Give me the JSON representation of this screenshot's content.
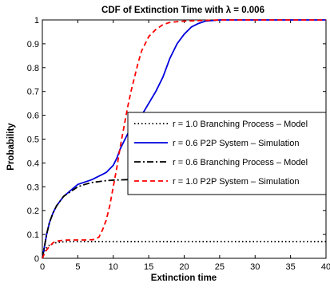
{
  "chart_data": {
    "type": "line",
    "title": "CDF of Extinction Time with λ = 0.006",
    "xlabel": "Extinction time",
    "ylabel": "Probability",
    "xlim": [
      0,
      40
    ],
    "ylim": [
      0,
      1
    ],
    "xticks": [
      0,
      5,
      10,
      15,
      20,
      25,
      30,
      35,
      40
    ],
    "yticks": [
      0,
      0.1,
      0.2,
      0.3,
      0.4,
      0.5,
      0.6,
      0.7,
      0.8,
      0.9,
      1
    ],
    "xtick_labels": [
      "0",
      "5",
      "10",
      "15",
      "20",
      "25",
      "30",
      "35",
      "40"
    ],
    "ytick_labels": [
      "0",
      "0.1",
      "0.2",
      "0.3",
      "0.4",
      "0.5",
      "0.6",
      "0.7",
      "0.8",
      "0.9",
      "1"
    ],
    "grid": false,
    "legend_position": "right",
    "series": [
      {
        "name": "r = 1.0 Branching Process – Model",
        "color": "#000000",
        "style": "dotted",
        "x": [
          0,
          0.3,
          0.6,
          1,
          1.5,
          2,
          2.5,
          3,
          4,
          5,
          6,
          8,
          10,
          15,
          20,
          25,
          30,
          35,
          40
        ],
        "y": [
          0,
          0.03,
          0.045,
          0.055,
          0.062,
          0.066,
          0.068,
          0.069,
          0.07,
          0.07,
          0.07,
          0.07,
          0.07,
          0.07,
          0.07,
          0.07,
          0.07,
          0.07,
          0.07
        ]
      },
      {
        "name": "r = 0.6 P2P System – Simulation",
        "color": "#0000dd",
        "style": "solid",
        "x": [
          0,
          0.3,
          0.6,
          1,
          1.5,
          2,
          3,
          4,
          5,
          6,
          7,
          8,
          9,
          10,
          10.5,
          11,
          12,
          13,
          14,
          15,
          16,
          17,
          18,
          19,
          20,
          21,
          22,
          23,
          25,
          30,
          35,
          40
        ],
        "y": [
          0,
          0.05,
          0.1,
          0.15,
          0.19,
          0.22,
          0.26,
          0.285,
          0.31,
          0.32,
          0.33,
          0.345,
          0.36,
          0.39,
          0.42,
          0.46,
          0.52,
          0.57,
          0.6,
          0.65,
          0.7,
          0.76,
          0.84,
          0.9,
          0.94,
          0.97,
          0.985,
          0.995,
          1,
          1,
          1,
          1
        ]
      },
      {
        "name": "r = 0.6 Branching Process – Model",
        "color": "#000000",
        "style": "dashdot",
        "x": [
          0,
          0.3,
          0.6,
          1,
          1.5,
          2,
          3,
          4,
          5,
          6,
          7,
          8,
          9,
          10,
          12,
          15,
          20,
          25,
          30,
          35,
          40
        ],
        "y": [
          0,
          0.05,
          0.1,
          0.15,
          0.19,
          0.22,
          0.26,
          0.28,
          0.3,
          0.31,
          0.318,
          0.322,
          0.326,
          0.328,
          0.33,
          0.332,
          0.333,
          0.333,
          0.333,
          0.333,
          0.333
        ]
      },
      {
        "name": "r = 1.0 P2P System – Simulation",
        "color": "#ff0000",
        "style": "dashed",
        "x": [
          0,
          0.3,
          0.6,
          1,
          1.5,
          2,
          3,
          4,
          5,
          6,
          7,
          7.5,
          8,
          8.5,
          9,
          9.5,
          10,
          10.5,
          11,
          11.5,
          12,
          12.5,
          13,
          13.5,
          14,
          15,
          16,
          17,
          18,
          20,
          25,
          30,
          35,
          40
        ],
        "y": [
          0,
          0.02,
          0.035,
          0.05,
          0.065,
          0.072,
          0.076,
          0.077,
          0.077,
          0.077,
          0.078,
          0.08,
          0.09,
          0.12,
          0.16,
          0.22,
          0.3,
          0.38,
          0.47,
          0.55,
          0.63,
          0.7,
          0.76,
          0.82,
          0.87,
          0.93,
          0.96,
          0.98,
          0.99,
          0.995,
          1,
          1,
          1,
          1
        ]
      }
    ]
  }
}
